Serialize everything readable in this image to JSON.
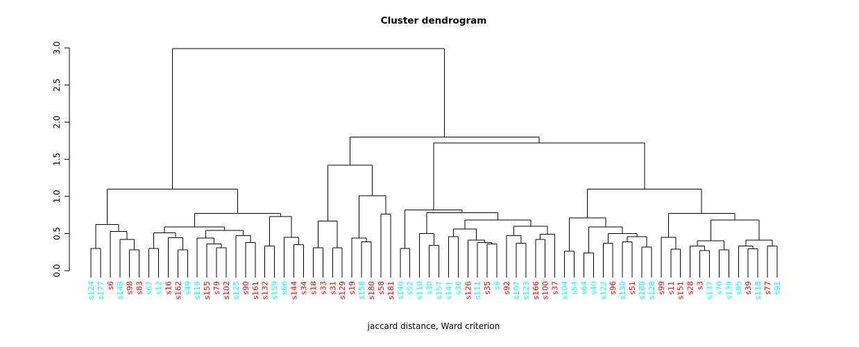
{
  "chart_data": {
    "type": "dendrogram",
    "title": "Cluster dendrogram",
    "xlabel": "jaccard distance, Ward criterion",
    "ylabel": "",
    "ylim": [
      0.0,
      3.0
    ],
    "y_ticks": [
      "0.0",
      "0.5",
      "1.0",
      "1.5",
      "2.0",
      "2.5",
      "3.0"
    ],
    "grid": false,
    "legend": "none",
    "colors": {
      "cluster_a": "#FF0000",
      "cluster_b": "#00FFFF",
      "lines": "#000000"
    },
    "leaves": [
      {
        "label": "s124",
        "color": "#00FFFF"
      },
      {
        "label": "s177",
        "color": "#00FFFF"
      },
      {
        "label": "s6",
        "color": "#FF0000"
      },
      {
        "label": "s148",
        "color": "#00FFFF"
      },
      {
        "label": "s98",
        "color": "#FF0000"
      },
      {
        "label": "s83",
        "color": "#FF0000"
      },
      {
        "label": "s67",
        "color": "#00FFFF"
      },
      {
        "label": "s12",
        "color": "#00FFFF"
      },
      {
        "label": "s16",
        "color": "#FF0000"
      },
      {
        "label": "s162",
        "color": "#FF0000"
      },
      {
        "label": "s49",
        "color": "#00FFFF"
      },
      {
        "label": "s119",
        "color": "#00FFFF"
      },
      {
        "label": "s155",
        "color": "#FF0000"
      },
      {
        "label": "s79",
        "color": "#FF0000"
      },
      {
        "label": "s102",
        "color": "#FF0000"
      },
      {
        "label": "s125",
        "color": "#00FFFF"
      },
      {
        "label": "s90",
        "color": "#FF0000"
      },
      {
        "label": "s161",
        "color": "#FF0000"
      },
      {
        "label": "s132",
        "color": "#FF0000"
      },
      {
        "label": "s159",
        "color": "#00FFFF"
      },
      {
        "label": "s66",
        "color": "#00FFFF"
      },
      {
        "label": "s144",
        "color": "#FF0000"
      },
      {
        "label": "s34",
        "color": "#FF0000"
      },
      {
        "label": "s18",
        "color": "#FF0000"
      },
      {
        "label": "s33",
        "color": "#FF0000"
      },
      {
        "label": "s31",
        "color": "#FF0000"
      },
      {
        "label": "s129",
        "color": "#FF0000"
      },
      {
        "label": "s19",
        "color": "#FF0000"
      },
      {
        "label": "s158",
        "color": "#00FFFF"
      },
      {
        "label": "s180",
        "color": "#FF0000"
      },
      {
        "label": "s58",
        "color": "#FF0000"
      },
      {
        "label": "s181",
        "color": "#FF0000"
      },
      {
        "label": "s140",
        "color": "#00FFFF"
      },
      {
        "label": "s52",
        "color": "#00FFFF"
      },
      {
        "label": "s110",
        "color": "#00FFFF"
      },
      {
        "label": "s30",
        "color": "#00FFFF"
      },
      {
        "label": "s157",
        "color": "#00FFFF"
      },
      {
        "label": "s141",
        "color": "#00FFFF"
      },
      {
        "label": "s36",
        "color": "#00FFFF"
      },
      {
        "label": "s126",
        "color": "#FF0000"
      },
      {
        "label": "s111",
        "color": "#00FFFF"
      },
      {
        "label": "s35",
        "color": "#FF0000"
      },
      {
        "label": "s9",
        "color": "#00FFFF"
      },
      {
        "label": "s92",
        "color": "#FF0000"
      },
      {
        "label": "s107",
        "color": "#00FFFF"
      },
      {
        "label": "s123",
        "color": "#00FFFF"
      },
      {
        "label": "s166",
        "color": "#FF0000"
      },
      {
        "label": "s100",
        "color": "#FF0000"
      },
      {
        "label": "s37",
        "color": "#FF0000"
      },
      {
        "label": "s104",
        "color": "#00FFFF"
      },
      {
        "label": "s54",
        "color": "#00FFFF"
      },
      {
        "label": "s64",
        "color": "#00FFFF"
      },
      {
        "label": "s40",
        "color": "#00FFFF"
      },
      {
        "label": "s122",
        "color": "#00FFFF"
      },
      {
        "label": "s96",
        "color": "#FF0000"
      },
      {
        "label": "s130",
        "color": "#00FFFF"
      },
      {
        "label": "s51",
        "color": "#FF0000"
      },
      {
        "label": "s188",
        "color": "#00FFFF"
      },
      {
        "label": "s128",
        "color": "#00FFFF"
      },
      {
        "label": "s99",
        "color": "#FF0000"
      },
      {
        "label": "s11",
        "color": "#FF0000"
      },
      {
        "label": "s151",
        "color": "#FF0000"
      },
      {
        "label": "s28",
        "color": "#FF0000"
      },
      {
        "label": "s3",
        "color": "#FF0000"
      },
      {
        "label": "s137",
        "color": "#00FFFF"
      },
      {
        "label": "s70",
        "color": "#00FFFF"
      },
      {
        "label": "s139",
        "color": "#00FFFF"
      },
      {
        "label": "s85",
        "color": "#00FFFF"
      },
      {
        "label": "s39",
        "color": "#FF0000"
      },
      {
        "label": "s118",
        "color": "#00FFFF"
      },
      {
        "label": "s77",
        "color": "#FF0000"
      },
      {
        "label": "s91",
        "color": "#00FFFF"
      }
    ],
    "tree": {
      "h": 2.99,
      "c": [
        {
          "h": 1.1,
          "c": [
            {
              "h": 0.62,
              "c": [
                {
                  "h": 0.3,
                  "c": [
                    "s124",
                    "s177"
                  ]
                },
                {
                  "h": 0.53,
                  "c": [
                    "s6",
                    {
                      "h": 0.42,
                      "c": [
                        "s148",
                        {
                          "h": 0.28,
                          "c": [
                            "s98",
                            "s83"
                          ]
                        }
                      ]
                    }
                  ]
                }
              ]
            },
            {
              "h": 0.77,
              "c": [
                {
                  "h": 0.59,
                  "c": [
                    {
                      "h": 0.51,
                      "c": [
                        {
                          "h": 0.3,
                          "c": [
                            "s67",
                            "s12"
                          ]
                        },
                        {
                          "h": 0.445,
                          "c": [
                            "s16",
                            {
                              "h": 0.28,
                              "c": [
                                "s162",
                                "s49"
                              ]
                            }
                          ]
                        }
                      ]
                    },
                    {
                      "h": 0.54,
                      "c": [
                        {
                          "h": 0.44,
                          "c": [
                            "s119",
                            {
                              "h": 0.36,
                              "c": [
                                "s155",
                                {
                                  "h": 0.31,
                                  "c": [
                                    "s79",
                                    "s102"
                                  ]
                                }
                              ]
                            }
                          ]
                        },
                        {
                          "h": 0.47,
                          "c": [
                            "s125",
                            {
                              "h": 0.38,
                              "c": [
                                "s90",
                                "s161"
                              ]
                            }
                          ]
                        }
                      ]
                    }
                  ]
                },
                {
                  "h": 0.73,
                  "c": [
                    {
                      "h": 0.33,
                      "c": [
                        "s132",
                        "s159"
                      ]
                    },
                    {
                      "h": 0.45,
                      "c": [
                        "s66",
                        {
                          "h": 0.35,
                          "c": [
                            "s144",
                            "s34"
                          ]
                        }
                      ]
                    }
                  ]
                }
              ]
            }
          ]
        },
        {
          "h": 1.8,
          "c": [
            {
              "h": 1.42,
              "c": [
                {
                  "h": 0.67,
                  "c": [
                    {
                      "h": 0.31,
                      "c": [
                        "s18",
                        "s33"
                      ]
                    },
                    {
                      "h": 0.31,
                      "c": [
                        "s31",
                        "s129"
                      ]
                    }
                  ]
                },
                {
                  "h": 1.01,
                  "c": [
                    {
                      "h": 0.44,
                      "c": [
                        "s19",
                        {
                          "h": 0.39,
                          "c": [
                            "s158",
                            "s180"
                          ]
                        }
                      ]
                    },
                    {
                      "h": 0.76,
                      "c": [
                        "s58",
                        "s181"
                      ]
                    }
                  ]
                }
              ]
            },
            {
              "h": 1.72,
              "c": [
                {
                  "h": 0.82,
                  "c": [
                    {
                      "h": 0.3,
                      "c": [
                        "s140",
                        "s52"
                      ]
                    },
                    {
                      "h": 0.78,
                      "c": [
                        {
                          "h": 0.5,
                          "c": [
                            "s110",
                            {
                              "h": 0.34,
                              "c": [
                                "s30",
                                "s157"
                              ]
                            }
                          ]
                        },
                        {
                          "h": 0.68,
                          "c": [
                            {
                              "h": 0.56,
                              "c": [
                                {
                                  "h": 0.46,
                                  "c": [
                                    "s141",
                                    "s36"
                                  ]
                                },
                                {
                                  "h": 0.41,
                                  "c": [
                                    "s126",
                                    {
                                      "h": 0.38,
                                      "c": [
                                        "s111",
                                        {
                                          "h": 0.36,
                                          "c": [
                                            "s35",
                                            "s9"
                                          ]
                                        }
                                      ]
                                    }
                                  ]
                                }
                              ]
                            },
                            {
                              "h": 0.6,
                              "c": [
                                {
                                  "h": 0.47,
                                  "c": [
                                    "s92",
                                    {
                                      "h": 0.37,
                                      "c": [
                                        "s107",
                                        "s123"
                                      ]
                                    }
                                  ]
                                },
                                {
                                  "h": 0.49,
                                  "c": [
                                    {
                                      "h": 0.42,
                                      "c": [
                                        "s166",
                                        "s100"
                                      ]
                                    },
                                    "s37"
                                  ]
                                }
                              ]
                            }
                          ]
                        }
                      ]
                    }
                  ]
                },
                {
                  "h": 1.1,
                  "c": [
                    {
                      "h": 0.71,
                      "c": [
                        {
                          "h": 0.26,
                          "c": [
                            "s104",
                            "s54"
                          ]
                        },
                        {
                          "h": 0.59,
                          "c": [
                            {
                              "h": 0.24,
                              "c": [
                                "s64",
                                "s40"
                              ]
                            },
                            {
                              "h": 0.5,
                              "c": [
                                {
                                  "h": 0.37,
                                  "c": [
                                    "s122",
                                    "s96"
                                  ]
                                },
                                {
                                  "h": 0.46,
                                  "c": [
                                    {
                                      "h": 0.39,
                                      "c": [
                                        "s130",
                                        "s51"
                                      ]
                                    },
                                    {
                                      "h": 0.32,
                                      "c": [
                                        "s188",
                                        "s128"
                                      ]
                                    }
                                  ]
                                }
                              ]
                            }
                          ]
                        }
                      ]
                    },
                    {
                      "h": 0.77,
                      "c": [
                        {
                          "h": 0.45,
                          "c": [
                            "s99",
                            {
                              "h": 0.29,
                              "c": [
                                "s11",
                                "s151"
                              ]
                            }
                          ]
                        },
                        {
                          "h": 0.68,
                          "c": [
                            {
                              "h": 0.4,
                              "c": [
                                {
                                  "h": 0.33,
                                  "c": [
                                    "s28",
                                    {
                                      "h": 0.27,
                                      "c": [
                                        "s3",
                                        "s137"
                                      ]
                                    }
                                  ]
                                },
                                {
                                  "h": 0.28,
                                  "c": [
                                    "s70",
                                    "s139"
                                  ]
                                }
                              ]
                            },
                            {
                              "h": 0.41,
                              "c": [
                                {
                                  "h": 0.33,
                                  "c": [
                                    "s85",
                                    {
                                      "h": 0.295,
                                      "c": [
                                        "s39",
                                        "s118"
                                      ]
                                    }
                                  ]
                                },
                                {
                                  "h": 0.33,
                                  "c": [
                                    "s77",
                                    "s91"
                                  ]
                                }
                              ]
                            }
                          ]
                        }
                      ]
                    }
                  ]
                }
              ]
            }
          ]
        }
      ]
    }
  }
}
